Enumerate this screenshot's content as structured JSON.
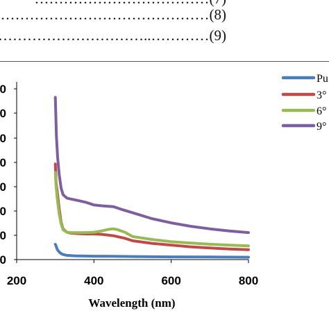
{
  "equations": [
    {
      "dots": "………………………………(7)",
      "partial": true
    },
    {
      "dots": "………………………………………(8)"
    },
    {
      "dots": "…………………………..…………(9)"
    }
  ],
  "chart_data": {
    "type": "line",
    "title": "",
    "xlabel": "Wavelength (nm)",
    "ylabel": "",
    "xlim": [
      200,
      800
    ],
    "x_ticks": [
      200,
      400,
      600,
      800
    ],
    "y_tick_labels": [
      "0",
      "0",
      "0",
      "0",
      "0",
      "0",
      "0",
      "0"
    ],
    "grid": false,
    "legend_position": "top-right",
    "series": [
      {
        "name": "Pu",
        "color": "#4a7ebb",
        "x": [
          300,
          302,
          305,
          310,
          315,
          320,
          330,
          350,
          400,
          450,
          500,
          600,
          700,
          800
        ],
        "y": [
          0.09,
          0.08,
          0.06,
          0.045,
          0.035,
          0.03,
          0.025,
          0.022,
          0.02,
          0.019,
          0.018,
          0.016,
          0.015,
          0.014
        ]
      },
      {
        "name": "3°",
        "color": "#be4b48",
        "x": [
          300,
          302,
          305,
          310,
          315,
          320,
          330,
          340,
          360,
          380,
          400,
          420,
          450,
          480,
          500,
          550,
          600,
          650,
          700,
          750,
          800
        ],
        "y": [
          0.56,
          0.45,
          0.4,
          0.3,
          0.22,
          0.18,
          0.16,
          0.155,
          0.152,
          0.15,
          0.15,
          0.148,
          0.14,
          0.125,
          0.11,
          0.095,
          0.085,
          0.075,
          0.068,
          0.062,
          0.058
        ]
      },
      {
        "name": "6°",
        "color": "#98b954",
        "x": [
          300,
          302,
          305,
          310,
          315,
          320,
          330,
          340,
          360,
          380,
          400,
          420,
          440,
          450,
          460,
          480,
          500,
          550,
          600,
          650,
          700,
          750,
          800
        ],
        "y": [
          0.51,
          0.43,
          0.36,
          0.27,
          0.21,
          0.175,
          0.16,
          0.158,
          0.158,
          0.158,
          0.16,
          0.168,
          0.178,
          0.18,
          0.176,
          0.16,
          0.135,
          0.118,
          0.105,
          0.097,
          0.09,
          0.085,
          0.08
        ]
      },
      {
        "name": "9°",
        "color": "#7d5fa0",
        "x": [
          300,
          303,
          306,
          310,
          315,
          320,
          330,
          340,
          360,
          380,
          400,
          420,
          450,
          470,
          500,
          550,
          600,
          650,
          700,
          750,
          800
        ],
        "y": [
          0.95,
          0.72,
          0.6,
          0.5,
          0.42,
          0.38,
          0.36,
          0.355,
          0.345,
          0.335,
          0.32,
          0.315,
          0.31,
          0.295,
          0.275,
          0.24,
          0.215,
          0.195,
          0.18,
          0.168,
          0.158
        ]
      }
    ]
  }
}
